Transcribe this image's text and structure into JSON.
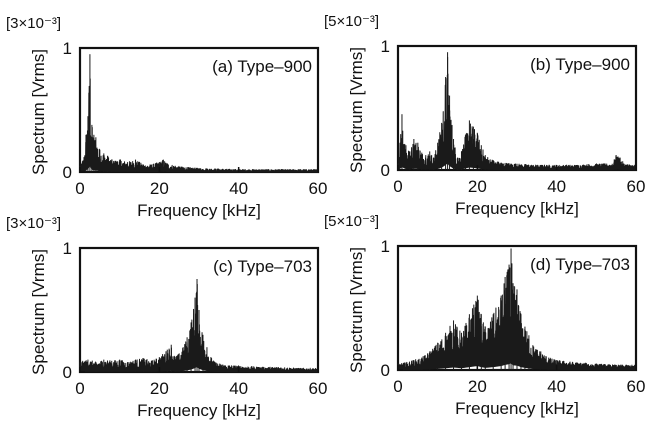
{
  "chart_data": [
    {
      "type": "line",
      "panel_label": "(a) Type–900",
      "multiplier": "[3×10⁻³]",
      "xlabel": "Frequency [kHz]",
      "ylabel": "Spectrum [Vrms]",
      "xlim": [
        0,
        60
      ],
      "ylim": [
        0,
        1
      ],
      "xticks": [
        "0",
        "20",
        "40",
        "60"
      ],
      "yticks": [
        "0",
        "1"
      ],
      "series": [
        {
          "x": [
            0,
            1,
            1.5,
            2,
            2.5,
            3,
            3.5,
            4,
            5,
            6,
            7,
            8,
            9,
            10,
            12,
            14,
            16,
            18,
            20,
            21,
            22,
            24,
            26,
            30,
            35,
            40,
            45,
            50,
            55,
            60
          ],
          "y": [
            0.05,
            0.12,
            0.3,
            0.45,
            0.95,
            0.38,
            0.3,
            0.28,
            0.18,
            0.15,
            0.13,
            0.1,
            0.09,
            0.1,
            0.08,
            0.1,
            0.06,
            0.06,
            0.08,
            0.1,
            0.07,
            0.05,
            0.04,
            0.03,
            0.025,
            0.02,
            0.02,
            0.02,
            0.02,
            0.02
          ]
        }
      ]
    },
    {
      "type": "line",
      "panel_label": "(b) Type–900",
      "multiplier": "[5×10⁻³]",
      "xlabel": "Frequency [kHz]",
      "ylabel": "Spectrum [Vrms]",
      "xlim": [
        0,
        60
      ],
      "ylim": [
        0,
        1
      ],
      "xticks": [
        "0",
        "20",
        "40",
        "60"
      ],
      "yticks": [
        "0",
        "1"
      ],
      "series": [
        {
          "x": [
            0,
            1,
            2,
            3,
            4,
            5,
            6,
            7,
            8,
            9,
            10,
            11,
            12,
            12.5,
            13,
            14,
            15,
            16,
            17,
            18,
            19,
            20,
            21,
            22,
            24,
            26,
            30,
            35,
            40,
            45,
            50,
            54,
            55,
            56,
            57,
            60
          ],
          "y": [
            0.05,
            0.45,
            0.2,
            0.15,
            0.25,
            0.22,
            0.14,
            0.12,
            0.15,
            0.1,
            0.22,
            0.38,
            0.75,
            0.95,
            0.6,
            0.25,
            0.1,
            0.15,
            0.28,
            0.4,
            0.35,
            0.3,
            0.2,
            0.12,
            0.08,
            0.06,
            0.05,
            0.04,
            0.04,
            0.04,
            0.05,
            0.05,
            0.12,
            0.1,
            0.05,
            0.04
          ]
        }
      ]
    },
    {
      "type": "line",
      "panel_label": "(c) Type–703",
      "multiplier": "[3×10⁻³]",
      "xlabel": "Frequency [kHz]",
      "ylabel": "Spectrum [Vrms]",
      "xlim": [
        0,
        60
      ],
      "ylim": [
        0,
        1
      ],
      "xticks": [
        "0",
        "20",
        "40",
        "60"
      ],
      "yticks": [
        "0",
        "1"
      ],
      "series": [
        {
          "x": [
            0,
            2,
            4,
            6,
            8,
            10,
            12,
            14,
            16,
            18,
            20,
            22,
            23,
            24,
            25,
            26,
            27,
            28,
            29,
            29.5,
            30,
            31,
            32,
            33,
            34,
            36,
            40,
            45,
            50,
            55,
            60
          ],
          "y": [
            0.08,
            0.1,
            0.08,
            0.1,
            0.09,
            0.1,
            0.08,
            0.1,
            0.11,
            0.09,
            0.12,
            0.18,
            0.22,
            0.12,
            0.15,
            0.2,
            0.28,
            0.4,
            0.6,
            0.75,
            0.5,
            0.3,
            0.2,
            0.12,
            0.08,
            0.06,
            0.05,
            0.04,
            0.04,
            0.03,
            0.03
          ]
        }
      ]
    },
    {
      "type": "line",
      "panel_label": "(d) Type–703",
      "multiplier": "[5×10⁻³]",
      "xlabel": "Frequency [kHz]",
      "ylabel": "Spectrum [Vrms]",
      "xlim": [
        0,
        60
      ],
      "ylim": [
        0,
        1
      ],
      "xticks": [
        "0",
        "20",
        "40",
        "60"
      ],
      "yticks": [
        "0",
        "1"
      ],
      "series": [
        {
          "x": [
            0,
            2,
            4,
            6,
            8,
            10,
            12,
            14,
            16,
            18,
            20,
            21,
            22,
            24,
            26,
            27,
            28,
            28.5,
            29,
            30,
            31,
            32,
            33,
            34,
            36,
            38,
            40,
            45,
            50,
            55,
            60
          ],
          "y": [
            0.05,
            0.06,
            0.08,
            0.1,
            0.15,
            0.22,
            0.3,
            0.4,
            0.3,
            0.45,
            0.6,
            0.45,
            0.35,
            0.45,
            0.6,
            0.75,
            0.85,
            0.98,
            0.7,
            0.65,
            0.45,
            0.35,
            0.28,
            0.2,
            0.15,
            0.1,
            0.08,
            0.06,
            0.05,
            0.04,
            0.04
          ]
        }
      ]
    }
  ]
}
